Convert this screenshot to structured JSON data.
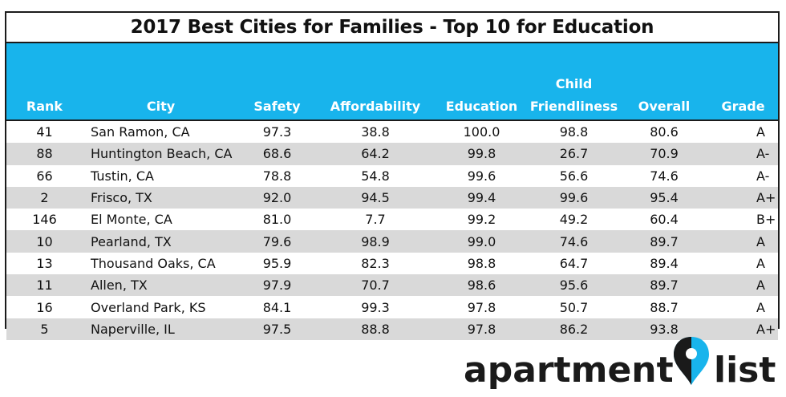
{
  "title": "2017 Best Cities for Families - Top 10 for Education",
  "colors": {
    "header_bg": "#18b4ec",
    "stripe": "#d9d9d9",
    "border": "#1b1b1b",
    "logo_text": "#1a1a1a",
    "logo_accent": "#18b4ec"
  },
  "chart_data": {
    "type": "table",
    "title": "2017 Best Cities for Families - Top 10 for Education",
    "columns": [
      "Rank",
      "City",
      "Safety",
      "Affordability",
      "Education",
      "Child Friendliness",
      "Overall",
      "Grade"
    ],
    "header_lines": [
      [
        "",
        "Rank"
      ],
      [
        "",
        "City"
      ],
      [
        "",
        "Safety"
      ],
      [
        "",
        "Affordability"
      ],
      [
        "",
        "Education"
      ],
      [
        "Child",
        "Friendliness"
      ],
      [
        "",
        "Overall"
      ],
      [
        "",
        "Grade"
      ]
    ],
    "rows": [
      [
        "41",
        "San Ramon, CA",
        "97.3",
        "38.8",
        "100.0",
        "98.8",
        "80.6",
        "A"
      ],
      [
        "88",
        "Huntington Beach, CA",
        "68.6",
        "64.2",
        "99.8",
        "26.7",
        "70.9",
        "A-"
      ],
      [
        "66",
        "Tustin, CA",
        "78.8",
        "54.8",
        "99.6",
        "56.6",
        "74.6",
        "A-"
      ],
      [
        "2",
        "Frisco, TX",
        "92.0",
        "94.5",
        "99.4",
        "99.6",
        "95.4",
        "A+"
      ],
      [
        "146",
        "El Monte, CA",
        "81.0",
        "7.7",
        "99.2",
        "49.2",
        "60.4",
        "B+"
      ],
      [
        "10",
        "Pearland, TX",
        "79.6",
        "98.9",
        "99.0",
        "74.6",
        "89.7",
        "A"
      ],
      [
        "13",
        "Thousand Oaks, CA",
        "95.9",
        "82.3",
        "98.8",
        "64.7",
        "89.4",
        "A"
      ],
      [
        "11",
        "Allen, TX",
        "97.9",
        "70.7",
        "98.6",
        "95.6",
        "89.7",
        "A"
      ],
      [
        "16",
        "Overland Park, KS",
        "84.1",
        "99.3",
        "97.8",
        "50.7",
        "88.7",
        "A"
      ],
      [
        "5",
        "Naperville, IL",
        "97.5",
        "88.8",
        "97.8",
        "86.2",
        "93.8",
        "A+"
      ]
    ]
  },
  "logo": {
    "left_text": "apartment",
    "right_text": "list",
    "icon": "map-pin-icon"
  }
}
